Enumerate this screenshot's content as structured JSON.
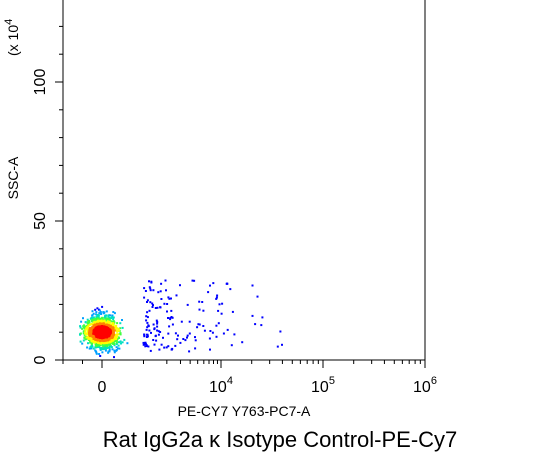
{
  "chart_data": {
    "type": "scatter",
    "subtype": "flow-cytometry density dot plot",
    "title": "Rat IgG2a κ Isotype Control-PE-Cy7",
    "xlabel": "PE-CY7 Y763-PC7-A",
    "ylabel": "SSC-A",
    "y_multiplier_label": "(x 10",
    "y_multiplier_exponent": "4",
    "x_scale": "biexponential (linear near 0, log above)",
    "xlim": [
      -3000,
      1000000
    ],
    "ylim": [
      0,
      125
    ],
    "x_ticks": [
      {
        "value": 0,
        "base": "0",
        "exp": ""
      },
      {
        "value": 10000,
        "base": "10",
        "exp": "4"
      },
      {
        "value": 100000,
        "base": "10",
        "exp": "5"
      },
      {
        "value": 1000000,
        "base": "10",
        "exp": "6"
      }
    ],
    "y_ticks": [
      {
        "value": 0,
        "label": "0"
      },
      {
        "value": 50,
        "label": "50"
      },
      {
        "value": 100,
        "label": "100"
      }
    ],
    "grid": false,
    "color_scale": [
      "#0000ff",
      "#00a0ff",
      "#00e0c0",
      "#40ff40",
      "#ffff00",
      "#ff8000",
      "#ff0000"
    ],
    "population": {
      "center_x": 0,
      "center_y": 10,
      "x_spread": 500,
      "y_spread": 4,
      "y_range": [
        0,
        31
      ],
      "tail_x_max": 80000
    }
  }
}
